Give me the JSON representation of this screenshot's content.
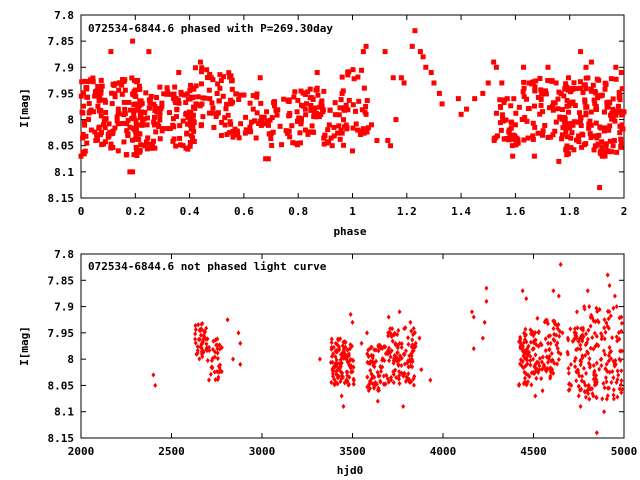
{
  "chart_data": [
    {
      "type": "scatter",
      "title": "072534-6844.6 phased with P=269.30day",
      "xlabel": "phase",
      "ylabel": "I[mag]",
      "xlim": [
        0,
        2
      ],
      "ylim": [
        8.15,
        7.8
      ],
      "xticks": [
        "0",
        "0.2",
        "0.4",
        "0.6",
        "0.8",
        "1",
        "1.2",
        "1.4",
        "1.6",
        "1.8",
        "2"
      ],
      "yticks": [
        "7.8",
        "7.85",
        "7.9",
        "7.95",
        "8",
        "8.05",
        "8.1",
        "8.15"
      ],
      "grid": false,
      "marker_color": "#ff0000",
      "series": [
        {
          "clusters": [
            {
              "x": [
                0.0,
                0.22
              ],
              "y": [
                7.92,
                8.07
              ],
              "n": 160
            },
            {
              "x": [
                0.2,
                0.42
              ],
              "y": [
                7.93,
                8.06
              ],
              "n": 130
            },
            {
              "x": [
                0.38,
                0.56
              ],
              "y": [
                7.9,
                8.02
              ],
              "n": 60
            },
            {
              "x": [
                0.5,
                0.68
              ],
              "y": [
                7.95,
                8.04
              ],
              "n": 45
            },
            {
              "x": [
                0.66,
                0.78
              ],
              "y": [
                7.96,
                8.05
              ],
              "n": 30
            },
            {
              "x": [
                0.76,
                0.98
              ],
              "y": [
                7.94,
                8.05
              ],
              "n": 90
            },
            {
              "x": [
                0.96,
                1.06
              ],
              "y": [
                7.9,
                8.03
              ],
              "n": 35
            },
            {
              "x": [
                1.52,
                1.62
              ],
              "y": [
                7.96,
                8.05
              ],
              "n": 40
            },
            {
              "x": [
                1.62,
                1.8
              ],
              "y": [
                7.92,
                8.04
              ],
              "n": 70
            },
            {
              "x": [
                1.78,
                2.0
              ],
              "y": [
                7.92,
                8.07
              ],
              "n": 160
            }
          ],
          "points": [
            {
              "x": 0.0,
              "y": 8.07
            },
            {
              "x": 0.18,
              "y": 8.1
            },
            {
              "x": 0.19,
              "y": 8.1
            },
            {
              "x": 0.19,
              "y": 7.85
            },
            {
              "x": 0.11,
              "y": 7.87
            },
            {
              "x": 0.68,
              "y": 8.075
            },
            {
              "x": 0.69,
              "y": 8.075
            },
            {
              "x": 1.0,
              "y": 8.06
            },
            {
              "x": 0.44,
              "y": 7.89
            },
            {
              "x": 0.25,
              "y": 7.87
            },
            {
              "x": 0.36,
              "y": 7.91
            },
            {
              "x": 0.48,
              "y": 7.92
            },
            {
              "x": 0.66,
              "y": 7.92
            },
            {
              "x": 0.87,
              "y": 7.91
            },
            {
              "x": 1.04,
              "y": 7.87
            },
            {
              "x": 1.05,
              "y": 7.86
            },
            {
              "x": 1.12,
              "y": 7.87
            },
            {
              "x": 1.15,
              "y": 7.92
            },
            {
              "x": 1.16,
              "y": 8.0
            },
            {
              "x": 1.07,
              "y": 8.01
            },
            {
              "x": 1.05,
              "y": 7.99
            },
            {
              "x": 1.09,
              "y": 8.04
            },
            {
              "x": 1.13,
              "y": 8.04
            },
            {
              "x": 1.14,
              "y": 8.05
            },
            {
              "x": 1.18,
              "y": 7.92
            },
            {
              "x": 1.19,
              "y": 7.93
            },
            {
              "x": 1.22,
              "y": 7.86
            },
            {
              "x": 1.23,
              "y": 7.83
            },
            {
              "x": 1.25,
              "y": 7.87
            },
            {
              "x": 1.26,
              "y": 7.88
            },
            {
              "x": 1.27,
              "y": 7.9
            },
            {
              "x": 1.29,
              "y": 7.91
            },
            {
              "x": 1.3,
              "y": 7.93
            },
            {
              "x": 1.32,
              "y": 7.95
            },
            {
              "x": 1.33,
              "y": 7.97
            },
            {
              "x": 1.39,
              "y": 7.96
            },
            {
              "x": 1.4,
              "y": 7.99
            },
            {
              "x": 1.42,
              "y": 7.98
            },
            {
              "x": 1.45,
              "y": 7.96
            },
            {
              "x": 1.48,
              "y": 7.95
            },
            {
              "x": 1.5,
              "y": 7.93
            },
            {
              "x": 1.52,
              "y": 7.89
            },
            {
              "x": 1.53,
              "y": 7.9
            },
            {
              "x": 1.55,
              "y": 7.93
            },
            {
              "x": 1.57,
              "y": 7.96
            },
            {
              "x": 1.59,
              "y": 8.07
            },
            {
              "x": 1.58,
              "y": 8.03
            },
            {
              "x": 1.6,
              "y": 8.01
            },
            {
              "x": 1.63,
              "y": 7.9
            },
            {
              "x": 1.65,
              "y": 7.93
            },
            {
              "x": 1.67,
              "y": 8.07
            },
            {
              "x": 1.7,
              "y": 8.03
            },
            {
              "x": 1.72,
              "y": 7.9
            },
            {
              "x": 1.75,
              "y": 7.93
            },
            {
              "x": 1.76,
              "y": 8.08
            },
            {
              "x": 1.79,
              "y": 8.06
            },
            {
              "x": 1.84,
              "y": 7.87
            },
            {
              "x": 1.86,
              "y": 7.9
            },
            {
              "x": 1.88,
              "y": 7.89
            },
            {
              "x": 1.9,
              "y": 8.035
            },
            {
              "x": 1.91,
              "y": 8.13
            },
            {
              "x": 1.92,
              "y": 8.07
            },
            {
              "x": 1.94,
              "y": 8.06
            },
            {
              "x": 1.96,
              "y": 8.05
            },
            {
              "x": 1.97,
              "y": 7.9
            },
            {
              "x": 1.99,
              "y": 7.91
            }
          ]
        }
      ]
    },
    {
      "type": "scatter",
      "title": "072534-6844.6 not phased light curve",
      "xlabel": "hjd0",
      "ylabel": "I[mag]",
      "xlim": [
        2000,
        5000
      ],
      "ylim": [
        8.15,
        7.8
      ],
      "xticks": [
        "2000",
        "2500",
        "3000",
        "3500",
        "4000",
        "4500",
        "5000"
      ],
      "yticks": [
        "7.8",
        "7.85",
        "7.9",
        "7.95",
        "8",
        "8.05",
        "8.1",
        "8.15"
      ],
      "grid": false,
      "marker_color": "#ff0000",
      "series": [
        {
          "clusters": [
            {
              "x": [
                2630,
                2700
              ],
              "y": [
                7.93,
                8.0
              ],
              "n": 45
            },
            {
              "x": [
                2700,
                2780
              ],
              "y": [
                7.96,
                8.04
              ],
              "n": 35
            },
            {
              "x": [
                3380,
                3510
              ],
              "y": [
                7.96,
                8.05
              ],
              "n": 110
            },
            {
              "x": [
                3580,
                3690
              ],
              "y": [
                7.97,
                8.06
              ],
              "n": 70
            },
            {
              "x": [
                3690,
                3850
              ],
              "y": [
                7.94,
                8.05
              ],
              "n": 110
            },
            {
              "x": [
                4420,
                4520
              ],
              "y": [
                7.94,
                8.05
              ],
              "n": 80
            },
            {
              "x": [
                4520,
                4650
              ],
              "y": [
                7.92,
                8.04
              ],
              "n": 70
            },
            {
              "x": [
                4680,
                4780
              ],
              "y": [
                7.94,
                8.06
              ],
              "n": 60
            },
            {
              "x": [
                4780,
                4990
              ],
              "y": [
                7.9,
                8.08
              ],
              "n": 140
            }
          ],
          "points": [
            {
              "x": 2400,
              "y": 8.03
            },
            {
              "x": 2410,
              "y": 8.05
            },
            {
              "x": 2810,
              "y": 7.925
            },
            {
              "x": 2840,
              "y": 8.0
            },
            {
              "x": 2870,
              "y": 7.95
            },
            {
              "x": 2880,
              "y": 7.97
            },
            {
              "x": 2880,
              "y": 8.01
            },
            {
              "x": 3320,
              "y": 8.0
            },
            {
              "x": 3490,
              "y": 7.915
            },
            {
              "x": 3500,
              "y": 7.93
            },
            {
              "x": 3440,
              "y": 8.07
            },
            {
              "x": 3450,
              "y": 8.09
            },
            {
              "x": 3550,
              "y": 7.97
            },
            {
              "x": 3580,
              "y": 7.95
            },
            {
              "x": 3640,
              "y": 8.08
            },
            {
              "x": 3700,
              "y": 7.92
            },
            {
              "x": 3760,
              "y": 7.91
            },
            {
              "x": 3780,
              "y": 8.09
            },
            {
              "x": 3820,
              "y": 7.93
            },
            {
              "x": 3870,
              "y": 7.96
            },
            {
              "x": 3880,
              "y": 8.02
            },
            {
              "x": 3930,
              "y": 8.04
            },
            {
              "x": 4160,
              "y": 7.91
            },
            {
              "x": 4170,
              "y": 7.92
            },
            {
              "x": 4170,
              "y": 7.98
            },
            {
              "x": 4230,
              "y": 7.93
            },
            {
              "x": 4220,
              "y": 7.96
            },
            {
              "x": 4240,
              "y": 7.89
            },
            {
              "x": 4240,
              "y": 7.865
            },
            {
              "x": 4420,
              "y": 8.05
            },
            {
              "x": 4440,
              "y": 7.87
            },
            {
              "x": 4460,
              "y": 7.885
            },
            {
              "x": 4510,
              "y": 8.07
            },
            {
              "x": 4550,
              "y": 8.06
            },
            {
              "x": 4580,
              "y": 7.97
            },
            {
              "x": 4610,
              "y": 7.87
            },
            {
              "x": 4640,
              "y": 7.88
            },
            {
              "x": 4650,
              "y": 7.82
            },
            {
              "x": 4660,
              "y": 7.95
            },
            {
              "x": 4690,
              "y": 7.96
            },
            {
              "x": 4740,
              "y": 7.91
            },
            {
              "x": 4750,
              "y": 8.07
            },
            {
              "x": 4760,
              "y": 8.09
            },
            {
              "x": 4780,
              "y": 7.9
            },
            {
              "x": 4800,
              "y": 7.87
            },
            {
              "x": 4830,
              "y": 8.07
            },
            {
              "x": 4850,
              "y": 8.14
            },
            {
              "x": 4890,
              "y": 8.1
            },
            {
              "x": 4910,
              "y": 7.84
            },
            {
              "x": 4920,
              "y": 7.86
            },
            {
              "x": 4950,
              "y": 7.88
            },
            {
              "x": 4960,
              "y": 7.9
            },
            {
              "x": 4975,
              "y": 8.0
            },
            {
              "x": 4985,
              "y": 7.92
            }
          ]
        }
      ]
    }
  ]
}
